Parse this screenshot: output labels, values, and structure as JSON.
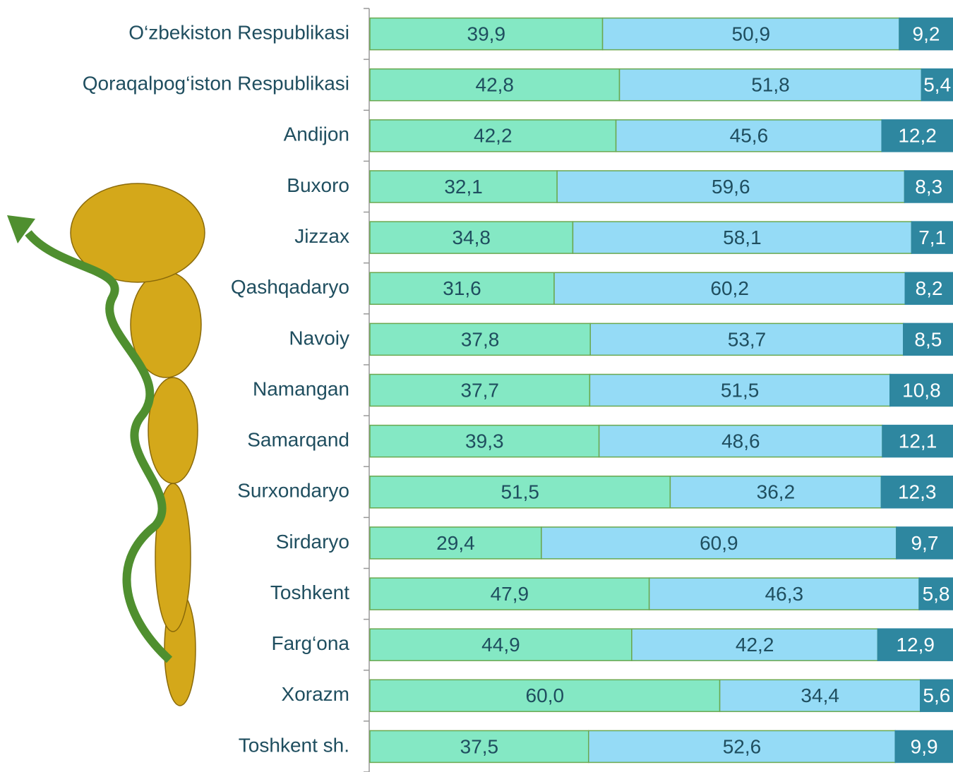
{
  "chart_data": {
    "type": "stacked-bar-horizontal",
    "categories": [
      "O‘zbekiston Respublikasi",
      "Qoraqalpog‘iston Respublikasi",
      "Andijon",
      "Buxoro",
      "Jizzax",
      "Qashqadaryo",
      "Navoiy",
      "Namangan",
      "Samarqand",
      "Surxondaryo",
      "Sirdaryo",
      "Toshkent",
      "Farg‘ona",
      "Xorazm",
      "Toshkent sh."
    ],
    "xlim": [
      0,
      100
    ],
    "series": [
      {
        "color": "#84e8c4",
        "values": [
          39.9,
          42.8,
          42.2,
          32.1,
          34.8,
          31.6,
          37.8,
          37.7,
          39.3,
          51.5,
          29.4,
          47.9,
          44.9,
          60.0,
          37.5
        ],
        "value_labels": [
          "39,9",
          "42,8",
          "42,2",
          "32,1",
          "34,8",
          "31,6",
          "37,8",
          "37,7",
          "39,3",
          "51,5",
          "29,4",
          "47,9",
          "44,9",
          "60,0",
          "37,5"
        ]
      },
      {
        "color": "#95dbf6",
        "values": [
          50.9,
          51.8,
          45.6,
          59.6,
          58.1,
          60.2,
          53.7,
          51.5,
          48.6,
          36.2,
          60.9,
          46.3,
          42.2,
          34.4,
          52.6
        ],
        "value_labels": [
          "50,9",
          "51,8",
          "45,6",
          "59,6",
          "58,1",
          "60,2",
          "53,7",
          "51,5",
          "48,6",
          "36,2",
          "60,9",
          "46,3",
          "42,2",
          "34,4",
          "52,6"
        ]
      },
      {
        "color": "#2e87a0",
        "values": [
          9.2,
          5.4,
          12.2,
          8.3,
          7.1,
          8.2,
          8.5,
          10.8,
          12.1,
          12.3,
          9.7,
          5.8,
          12.9,
          5.6,
          9.9
        ],
        "value_labels": [
          "9,2",
          "5,4",
          "12,2",
          "8,3",
          "7,1",
          "8,2",
          "8,5",
          "10,8",
          "12,1",
          "12,3",
          "9,7",
          "5,8",
          "12,9",
          "5,6",
          "9,9"
        ]
      }
    ]
  }
}
